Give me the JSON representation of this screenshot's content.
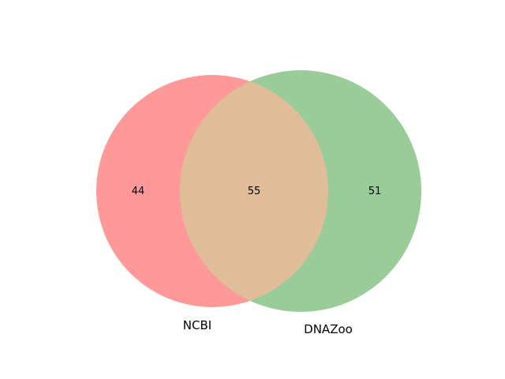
{
  "venn": {
    "sets": [
      {
        "name": "NCBI",
        "only_count": "44",
        "color": "#ff9999"
      },
      {
        "name": "DNAZoo",
        "only_count": "51",
        "color": "#99cc99"
      }
    ],
    "intersection": {
      "count": "55",
      "color": "#e0bd99"
    }
  },
  "chart_data": {
    "type": "venn",
    "sets": [
      "NCBI",
      "DNAZoo"
    ],
    "values": {
      "NCBI_only": 44,
      "DNAZoo_only": 51,
      "NCBI_and_DNAZoo": 55
    }
  }
}
